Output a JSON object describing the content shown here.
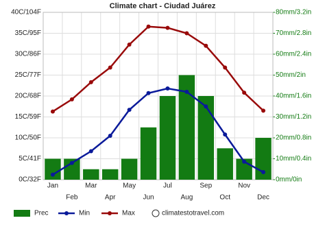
{
  "chart_data": {
    "type": "combo",
    "title": "Climate chart - Ciudad Juárez",
    "categories": [
      "Jan",
      "Feb",
      "Mar",
      "Apr",
      "May",
      "Jun",
      "Jul",
      "Aug",
      "Sep",
      "Oct",
      "Nov",
      "Dec"
    ],
    "ylim": [
      0,
      40
    ],
    "yticks": [
      {
        "value": 0,
        "label": "0C/32F"
      },
      {
        "value": 5,
        "label": "5C/41F"
      },
      {
        "value": 10,
        "label": "10C/50F"
      },
      {
        "value": 15,
        "label": "15C/59F"
      },
      {
        "value": 20,
        "label": "20C/68F"
      },
      {
        "value": 25,
        "label": "25C/77F"
      },
      {
        "value": 30,
        "label": "30C/86F"
      },
      {
        "value": 35,
        "label": "35C/95F"
      },
      {
        "value": 40,
        "label": "40C/104F"
      }
    ],
    "y2lim": [
      0,
      80
    ],
    "y2ticks": [
      {
        "value": 0,
        "label": "0mm/0in"
      },
      {
        "value": 10,
        "label": "10mm/0.4in"
      },
      {
        "value": 20,
        "label": "20mm/0.8in"
      },
      {
        "value": 30,
        "label": "30mm/1.2in"
      },
      {
        "value": 40,
        "label": "40mm/1.6in"
      },
      {
        "value": 50,
        "label": "50mm/2in"
      },
      {
        "value": 60,
        "label": "60mm/2.4in"
      },
      {
        "value": 70,
        "label": "70mm/2.8in"
      },
      {
        "value": 80,
        "label": "80mm/3.2in"
      }
    ],
    "grid": true,
    "series": [
      {
        "name": "Prec",
        "type": "bar",
        "axis": "y2",
        "color": "#137b13",
        "values": [
          10,
          10,
          5,
          5,
          10,
          25,
          40,
          50,
          40,
          15,
          10,
          20
        ]
      },
      {
        "name": "Min",
        "type": "line",
        "color": "#0a1a9a",
        "values": [
          1.2,
          4.0,
          6.8,
          10.5,
          16.7,
          20.7,
          21.8,
          21.0,
          17.5,
          10.8,
          4.3,
          1.8
        ]
      },
      {
        "name": "Max",
        "type": "line",
        "color": "#990a0a",
        "values": [
          16.3,
          19.2,
          23.3,
          26.8,
          32.3,
          36.6,
          36.3,
          35.0,
          32.0,
          26.8,
          20.8,
          16.5
        ]
      }
    ],
    "credit": "climatestotravel.com"
  }
}
